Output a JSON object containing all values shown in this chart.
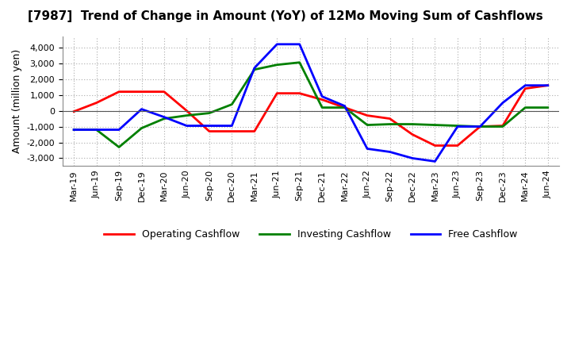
{
  "title": "[7987]  Trend of Change in Amount (YoY) of 12Mo Moving Sum of Cashflows",
  "ylabel": "Amount (million yen)",
  "x_labels": [
    "Mar-19",
    "Jun-19",
    "Sep-19",
    "Dec-19",
    "Mar-20",
    "Jun-20",
    "Sep-20",
    "Dec-20",
    "Mar-21",
    "Jun-21",
    "Sep-21",
    "Dec-21",
    "Mar-22",
    "Jun-22",
    "Sep-22",
    "Dec-22",
    "Mar-23",
    "Jun-23",
    "Sep-23",
    "Dec-23",
    "Mar-24",
    "Jun-24"
  ],
  "operating_cashflow": [
    -50,
    500,
    1200,
    1200,
    1200,
    0,
    -1300,
    -1300,
    -1300,
    1100,
    1100,
    700,
    200,
    -300,
    -500,
    -1500,
    -2200,
    -2200,
    -1000,
    -950,
    1400,
    1600
  ],
  "investing_cashflow": [
    -1200,
    -1200,
    -2300,
    -1100,
    -500,
    -300,
    -150,
    400,
    2600,
    2900,
    3050,
    200,
    200,
    -900,
    -850,
    -850,
    -900,
    -950,
    -1000,
    -1000,
    200,
    200
  ],
  "free_cashflow": [
    -1200,
    -1200,
    -1200,
    100,
    -400,
    -950,
    -950,
    -950,
    2700,
    4200,
    4200,
    900,
    300,
    -2400,
    -2600,
    -3000,
    -3200,
    -1000,
    -1000,
    500,
    1600,
    1600
  ],
  "operating_color": "#ff0000",
  "investing_color": "#008000",
  "free_color": "#0000ff",
  "ylim": [
    -3500,
    4700
  ],
  "yticks": [
    -3000,
    -2000,
    -1000,
    0,
    1000,
    2000,
    3000,
    4000
  ],
  "bg_color": "#ffffff",
  "grid_color": "#aaaaaa",
  "linewidth": 2.0,
  "title_fontsize": 11,
  "legend_fontsize": 9,
  "ylabel_fontsize": 9,
  "tick_fontsize": 8
}
